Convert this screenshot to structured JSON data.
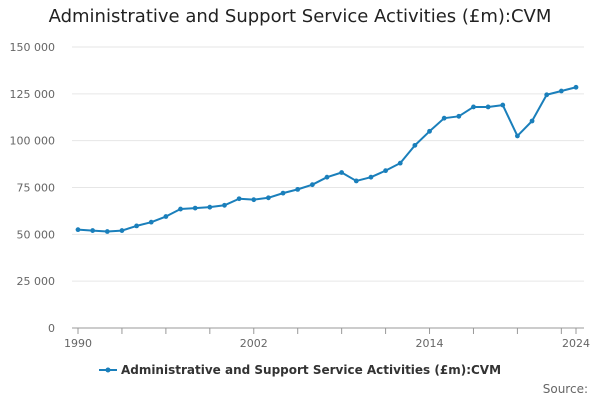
{
  "title": "Administrative and Support Service Activities (£m):CVM",
  "source_label": "Source:",
  "colors": {
    "series": "#1a7fbb",
    "grid": "#e6e6e6",
    "axis": "#999999",
    "text": "#666666"
  },
  "chart_data": {
    "type": "line",
    "title": "Administrative and Support Service Activities (£m):CVM",
    "xlabel": "",
    "ylabel": "",
    "xlim": [
      1990,
      2024
    ],
    "ylim": [
      0,
      150000
    ],
    "yticks": [
      0,
      25000,
      50000,
      75000,
      100000,
      125000,
      150000
    ],
    "ytick_labels": [
      "0",
      "25 000",
      "50 000",
      "75 000",
      "100 000",
      "125 000",
      "150 000"
    ],
    "xtick_labels": [
      "1990",
      "2002",
      "2014",
      "2024"
    ],
    "xticks": [
      1990,
      2002,
      2014,
      2024
    ],
    "legend_position": "bottom",
    "series": [
      {
        "name": "Administrative and Support Service Activities (£m):CVM",
        "x": [
          1990,
          1991,
          1992,
          1993,
          1994,
          1995,
          1996,
          1997,
          1998,
          1999,
          2000,
          2001,
          2002,
          2003,
          2004,
          2005,
          2006,
          2007,
          2008,
          2009,
          2010,
          2011,
          2012,
          2013,
          2014,
          2015,
          2016,
          2017,
          2018,
          2019,
          2020,
          2021,
          2022,
          2023,
          2024
        ],
        "values": [
          52500,
          52000,
          51500,
          52000,
          54500,
          56500,
          59500,
          63500,
          64000,
          64500,
          65500,
          69000,
          68500,
          69500,
          72000,
          74000,
          76500,
          80500,
          83000,
          78500,
          80500,
          84000,
          88000,
          97500,
          105000,
          112000,
          113000,
          118000,
          118000,
          119000,
          102500,
          110500,
          124500,
          126500,
          128500
        ]
      }
    ]
  }
}
